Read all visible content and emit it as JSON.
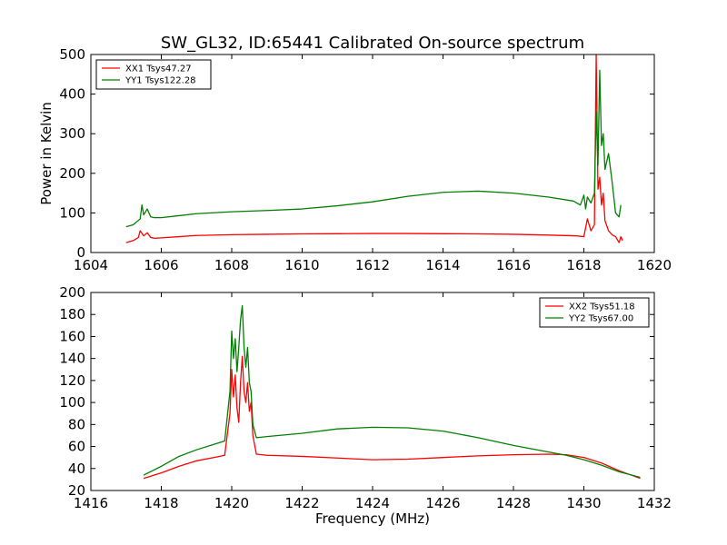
{
  "figure": {
    "title": "SW_GL32, ID:65441 Calibrated On-source spectrum"
  },
  "chart_data": [
    {
      "type": "line",
      "title": "SW_GL32, ID:65441 Calibrated On-source spectrum",
      "xlabel": "",
      "ylabel": "Power in Kelvin",
      "xlim": [
        1604,
        1620
      ],
      "ylim": [
        0,
        500
      ],
      "xticks": [
        "1604",
        "1606",
        "1608",
        "1610",
        "1612",
        "1614",
        "1616",
        "1618",
        "1620"
      ],
      "yticks": [
        "0",
        "100",
        "200",
        "300",
        "400",
        "500"
      ],
      "legend_position": "top-left",
      "grid": false,
      "series": [
        {
          "name": "XX1 Tsys47.27",
          "color": "#ff0000",
          "x": [
            1605.0,
            1605.2,
            1605.35,
            1605.4,
            1605.5,
            1605.6,
            1605.7,
            1605.8,
            1606.0,
            1606.5,
            1607.0,
            1608.0,
            1609.0,
            1610.0,
            1611.0,
            1612.0,
            1613.0,
            1614.0,
            1615.0,
            1616.0,
            1617.0,
            1617.8,
            1618.0,
            1618.1,
            1618.2,
            1618.3,
            1618.35,
            1618.4,
            1618.45,
            1618.5,
            1618.55,
            1618.6,
            1618.7,
            1618.8,
            1618.9,
            1619.0,
            1619.05,
            1619.1
          ],
          "y": [
            25,
            30,
            38,
            55,
            42,
            50,
            38,
            36,
            37,
            40,
            43,
            45,
            46,
            47,
            47.5,
            48,
            48,
            47.5,
            47,
            46,
            44,
            42,
            40,
            85,
            55,
            70,
            500,
            160,
            190,
            120,
            150,
            80,
            55,
            45,
            40,
            25,
            40,
            30
          ],
          "labels": [
            "XX1 Tsys47.27"
          ]
        },
        {
          "name": "YY1 Tsys122.28",
          "color": "#008000",
          "x": [
            1605.0,
            1605.2,
            1605.4,
            1605.45,
            1605.5,
            1605.6,
            1605.7,
            1605.8,
            1606.0,
            1606.5,
            1607.0,
            1608.0,
            1609.0,
            1610.0,
            1611.0,
            1612.0,
            1613.0,
            1614.0,
            1615.0,
            1616.0,
            1617.0,
            1617.7,
            1617.9,
            1618.0,
            1618.05,
            1618.1,
            1618.2,
            1618.3,
            1618.35,
            1618.4,
            1618.45,
            1618.5,
            1618.55,
            1618.6,
            1618.7,
            1618.8,
            1618.9,
            1619.0,
            1619.05
          ],
          "y": [
            65,
            70,
            85,
            120,
            95,
            110,
            90,
            88,
            88,
            93,
            98,
            103,
            106,
            110,
            118,
            128,
            142,
            152,
            155,
            150,
            140,
            130,
            120,
            145,
            110,
            140,
            125,
            150,
            355,
            220,
            460,
            270,
            300,
            210,
            250,
            180,
            100,
            90,
            120
          ]
        }
      ]
    },
    {
      "type": "line",
      "title": "",
      "xlabel": "Frequency (MHz)",
      "ylabel": "",
      "xlim": [
        1416,
        1432
      ],
      "ylim": [
        20,
        200
      ],
      "xticks": [
        "1416",
        "1418",
        "1420",
        "1422",
        "1424",
        "1426",
        "1428",
        "1430",
        "1432"
      ],
      "yticks": [
        "20",
        "40",
        "60",
        "80",
        "100",
        "120",
        "140",
        "160",
        "180",
        "200"
      ],
      "legend_position": "top-right",
      "grid": false,
      "series": [
        {
          "name": "XX2 Tsys51.18",
          "color": "#ff0000",
          "x": [
            1417.5,
            1418.0,
            1418.5,
            1419.0,
            1419.5,
            1419.8,
            1419.95,
            1420.0,
            1420.05,
            1420.1,
            1420.15,
            1420.2,
            1420.25,
            1420.3,
            1420.35,
            1420.4,
            1420.45,
            1420.5,
            1420.55,
            1420.6,
            1420.7,
            1421.0,
            1422.0,
            1423.0,
            1424.0,
            1425.0,
            1426.0,
            1427.0,
            1428.0,
            1429.0,
            1429.5,
            1430.0,
            1430.5,
            1431.0,
            1431.6
          ],
          "y": [
            31,
            36,
            42,
            47,
            50,
            52,
            90,
            130,
            105,
            125,
            95,
            82,
            118,
            142,
            110,
            100,
            118,
            92,
            100,
            70,
            53,
            52,
            51,
            49.5,
            48,
            48.5,
            50,
            51.5,
            52.5,
            53,
            52.5,
            50,
            45,
            38,
            31
          ]
        },
        {
          "name": "YY2 Tsys67.00",
          "color": "#008000",
          "x": [
            1417.5,
            1418.0,
            1418.5,
            1419.0,
            1419.5,
            1419.8,
            1419.95,
            1420.0,
            1420.05,
            1420.1,
            1420.15,
            1420.2,
            1420.25,
            1420.3,
            1420.35,
            1420.4,
            1420.45,
            1420.5,
            1420.55,
            1420.6,
            1420.7,
            1421.0,
            1422.0,
            1423.0,
            1424.0,
            1425.0,
            1426.0,
            1427.0,
            1428.0,
            1429.0,
            1429.5,
            1430.0,
            1430.5,
            1431.0,
            1431.6
          ],
          "y": [
            34,
            42,
            51,
            57,
            62,
            65,
            110,
            165,
            140,
            158,
            128,
            150,
            175,
            188,
            150,
            132,
            150,
            118,
            110,
            80,
            68,
            69,
            72,
            76,
            77.5,
            77,
            74,
            68,
            61,
            55,
            52,
            48,
            43,
            37,
            32
          ]
        }
      ]
    }
  ]
}
